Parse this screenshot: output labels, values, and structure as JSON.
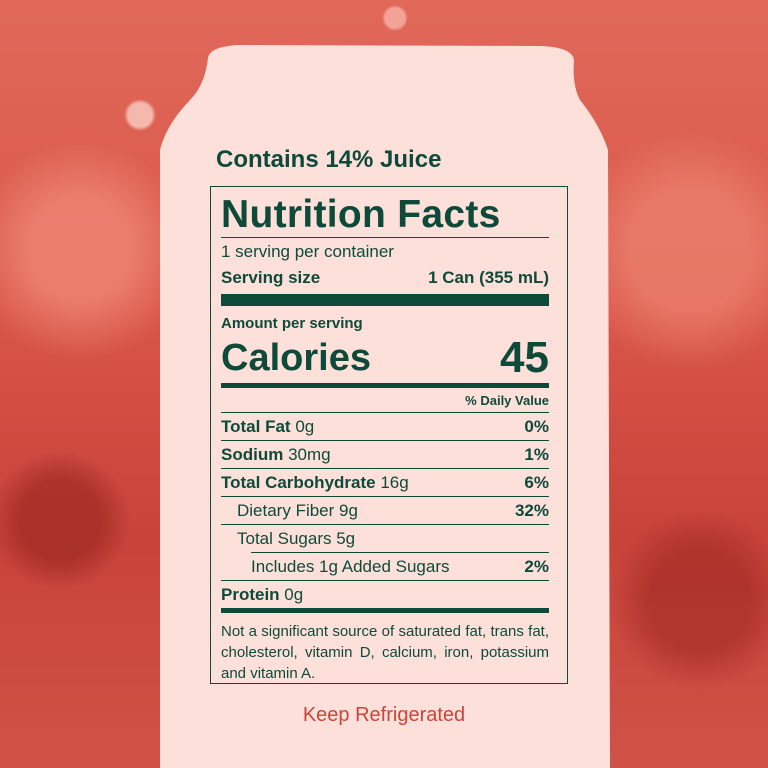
{
  "colors": {
    "can": "#fde0d9",
    "ink": "#0e4a3a",
    "accent": "#c9463a",
    "background": "#d9564a"
  },
  "contains": "Contains 14% Juice",
  "label": {
    "title": "Nutrition Facts",
    "servings": "1 serving per container",
    "serving_size_label": "Serving size",
    "serving_size_value": "1 Can (355 mL)",
    "amount_per_serving": "Amount per serving",
    "calories_label": "Calories",
    "calories_value": "45",
    "daily_value_header": "% Daily Value",
    "nutrients": [
      {
        "name": "Total Fat",
        "amount": "0g",
        "dv": "0%"
      },
      {
        "name": "Sodium",
        "amount": "30mg",
        "dv": "1%"
      },
      {
        "name": "Total Carbohydrate",
        "amount": "16g",
        "dv": "6%"
      },
      {
        "name": "Dietary Fiber 9g",
        "dv": "32%"
      },
      {
        "name": "Total Sugars 5g",
        "dv": ""
      },
      {
        "name": "Includes 1g Added Sugars",
        "dv": "2%"
      },
      {
        "name": "Protein",
        "amount": "0g"
      }
    ],
    "footnote": "Not a significant source of saturated fat, trans fat, cholesterol, vitamin D, calcium, iron, potassium and vitamin A."
  },
  "keep": "Keep Refrigerated"
}
